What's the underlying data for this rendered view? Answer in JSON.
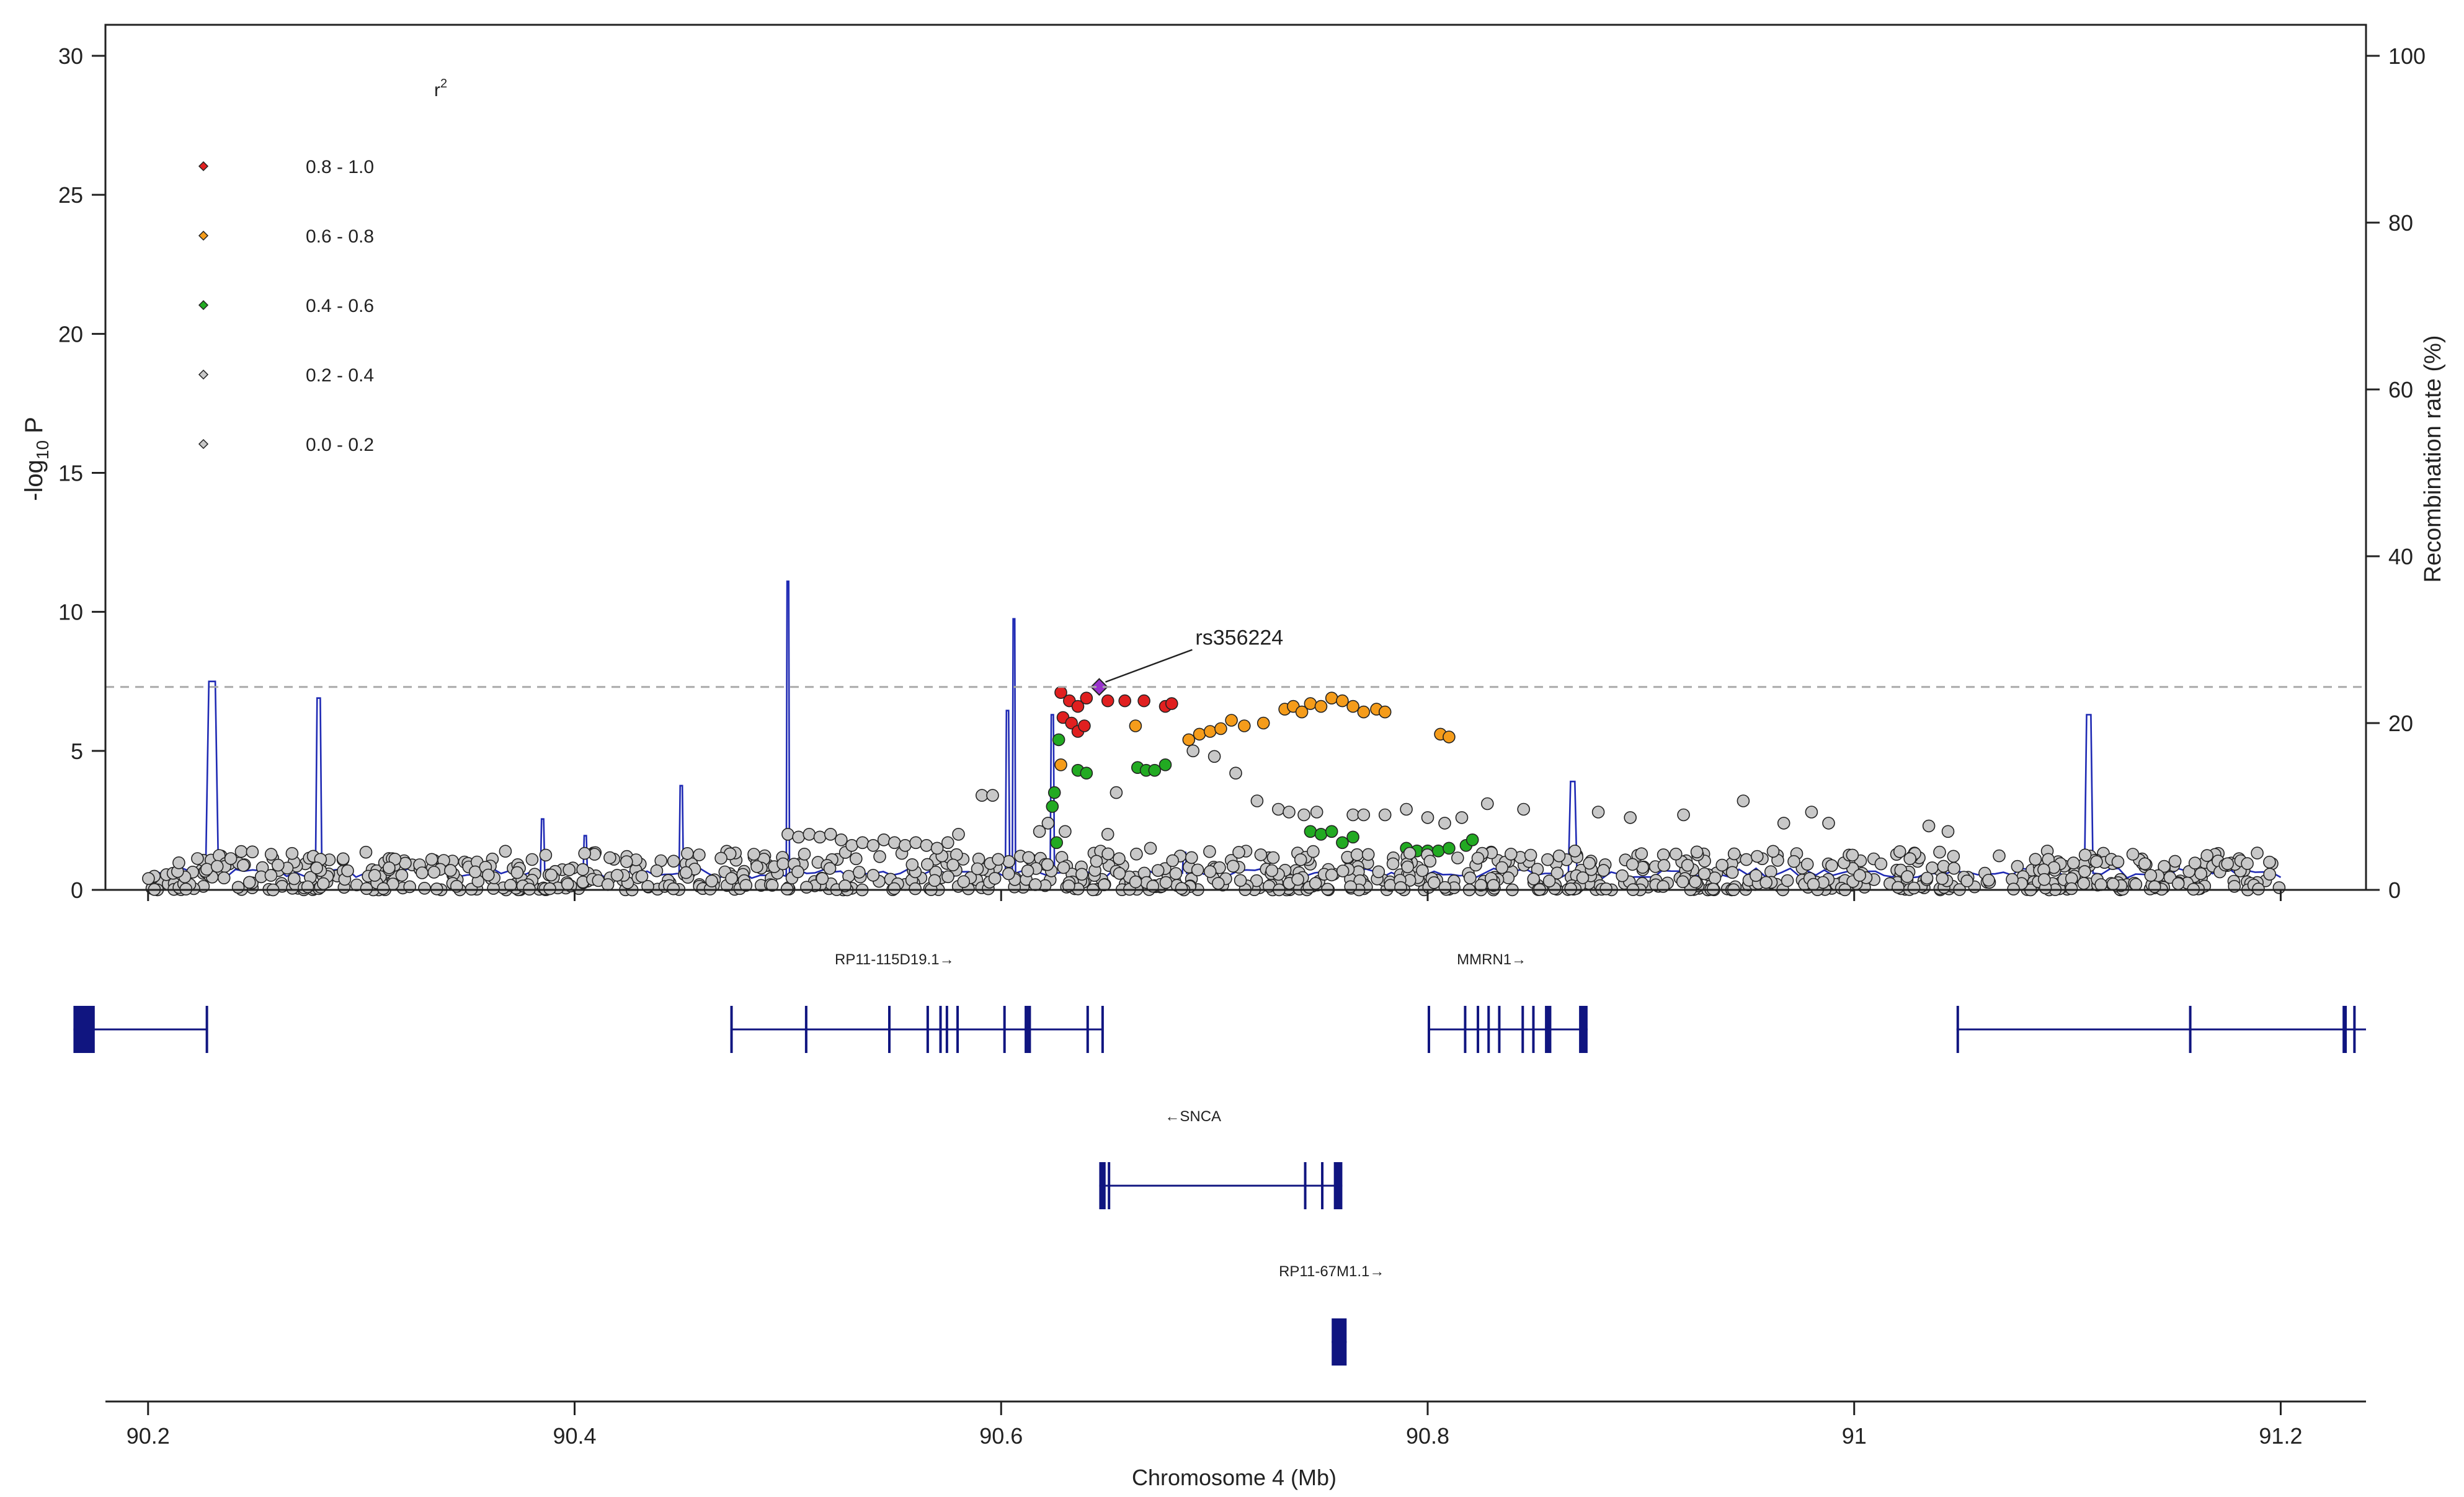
{
  "chart_data": {
    "type": "scatter",
    "title": "",
    "xlabel": "Chromosome 4 (Mb)",
    "ylabel_left": "-log10 P",
    "ylabel_right": "Recombination rate (%)",
    "xlim": [
      90.18,
      91.24
    ],
    "ylim_left": [
      0,
      30
    ],
    "ylim_right": [
      0,
      100
    ],
    "x_ticks": [
      "90.2",
      "90.4",
      "90.6",
      "90.8",
      "91",
      "91.2"
    ],
    "x_tick_values": [
      90.2,
      90.4,
      90.6,
      90.8,
      91.0,
      91.2
    ],
    "y_ticks_left": [
      "0",
      "5",
      "10",
      "15",
      "20",
      "25",
      "30"
    ],
    "y_ticks_right": [
      "0",
      "20",
      "40",
      "60",
      "80",
      "100"
    ],
    "significance_threshold": 7.3,
    "lead_snp": {
      "label": "rs356224",
      "x": 90.646,
      "y": 7.3,
      "color": "#9933cc"
    },
    "legend": {
      "title_base": "r",
      "title_sup": "2",
      "placement": "top-left",
      "items": [
        {
          "label": "0.8 - 1.0",
          "color": "#e02020"
        },
        {
          "label": "0.6 - 0.8",
          "color": "#f59c1a"
        },
        {
          "label": "0.4 - 0.6",
          "color": "#22aa22"
        },
        {
          "label": "0.2 - 0.4",
          "color": "#c8c8c8"
        },
        {
          "label": "0.0 - 0.2",
          "color": "#c8c8c8"
        }
      ]
    },
    "series": [
      {
        "name": "0.8 - 1.0",
        "color": "#e02020",
        "points": [
          [
            90.628,
            7.1
          ],
          [
            90.632,
            6.8
          ],
          [
            90.636,
            6.6
          ],
          [
            90.64,
            6.9
          ],
          [
            90.65,
            6.8
          ],
          [
            90.658,
            6.8
          ],
          [
            90.667,
            6.8
          ],
          [
            90.677,
            6.6
          ],
          [
            90.68,
            6.7
          ],
          [
            90.629,
            6.2
          ],
          [
            90.633,
            6.0
          ],
          [
            90.636,
            5.7
          ],
          [
            90.639,
            5.9
          ]
        ]
      },
      {
        "name": "0.6 - 0.8",
        "color": "#f59c1a",
        "points": [
          [
            90.628,
            4.5
          ],
          [
            90.663,
            5.9
          ],
          [
            90.688,
            5.4
          ],
          [
            90.693,
            5.6
          ],
          [
            90.698,
            5.7
          ],
          [
            90.703,
            5.8
          ],
          [
            90.708,
            6.1
          ],
          [
            90.714,
            5.9
          ],
          [
            90.723,
            6.0
          ],
          [
            90.733,
            6.5
          ],
          [
            90.737,
            6.6
          ],
          [
            90.741,
            6.4
          ],
          [
            90.745,
            6.7
          ],
          [
            90.75,
            6.6
          ],
          [
            90.755,
            6.9
          ],
          [
            90.76,
            6.8
          ],
          [
            90.765,
            6.6
          ],
          [
            90.77,
            6.4
          ],
          [
            90.776,
            6.5
          ],
          [
            90.78,
            6.4
          ],
          [
            90.806,
            5.6
          ],
          [
            90.81,
            5.5
          ]
        ]
      },
      {
        "name": "0.4 - 0.6",
        "color": "#22aa22",
        "points": [
          [
            90.624,
            3.0
          ],
          [
            90.626,
            1.7
          ],
          [
            90.627,
            5.4
          ],
          [
            90.625,
            3.5
          ],
          [
            90.636,
            4.3
          ],
          [
            90.64,
            4.2
          ],
          [
            90.664,
            4.4
          ],
          [
            90.668,
            4.3
          ],
          [
            90.672,
            4.3
          ],
          [
            90.677,
            4.5
          ],
          [
            90.745,
            2.1
          ],
          [
            90.75,
            2.0
          ],
          [
            90.755,
            2.1
          ],
          [
            90.76,
            1.7
          ],
          [
            90.765,
            1.9
          ],
          [
            90.79,
            1.5
          ],
          [
            90.795,
            1.4
          ],
          [
            90.8,
            1.4
          ],
          [
            90.805,
            1.4
          ],
          [
            90.81,
            1.5
          ],
          [
            90.818,
            1.6
          ],
          [
            90.821,
            1.8
          ]
        ]
      },
      {
        "name": "0.2 - 0.4",
        "color": "#c8c8c8",
        "points": [
          [
            90.591,
            3.4
          ],
          [
            90.596,
            3.4
          ],
          [
            90.63,
            2.1
          ],
          [
            90.65,
            2.0
          ],
          [
            90.654,
            3.5
          ],
          [
            90.67,
            1.5
          ],
          [
            90.69,
            5.0
          ],
          [
            90.7,
            4.8
          ],
          [
            90.71,
            4.2
          ],
          [
            90.72,
            3.2
          ],
          [
            90.73,
            2.9
          ],
          [
            90.735,
            2.8
          ],
          [
            90.742,
            2.7
          ],
          [
            90.748,
            2.8
          ],
          [
            90.765,
            2.7
          ],
          [
            90.77,
            2.7
          ],
          [
            90.78,
            2.7
          ],
          [
            90.79,
            2.9
          ],
          [
            90.8,
            2.6
          ],
          [
            90.808,
            2.4
          ],
          [
            90.816,
            2.6
          ],
          [
            90.828,
            3.1
          ],
          [
            90.845,
            2.9
          ],
          [
            90.88,
            2.8
          ],
          [
            90.895,
            2.6
          ],
          [
            90.92,
            2.7
          ],
          [
            90.948,
            3.2
          ],
          [
            90.967,
            2.4
          ],
          [
            90.98,
            2.8
          ],
          [
            90.988,
            2.4
          ],
          [
            91.035,
            2.3
          ],
          [
            91.044,
            2.1
          ]
        ]
      },
      {
        "name": "0.0 - 0.2",
        "color": "#c8c8c8",
        "cloud": {
          "x_start": 90.2,
          "x_end": 91.2,
          "count": 1000,
          "band_min": 0.0,
          "band_max": 1.4
        }
      },
      {
        "name": "0.0 - 0.2 (elevated)",
        "color": "#c8c8c8",
        "points": [
          [
            90.5,
            2.0
          ],
          [
            90.505,
            1.9
          ],
          [
            90.51,
            2.0
          ],
          [
            90.515,
            1.9
          ],
          [
            90.52,
            2.0
          ],
          [
            90.525,
            1.8
          ],
          [
            90.53,
            1.6
          ],
          [
            90.535,
            1.7
          ],
          [
            90.54,
            1.6
          ],
          [
            90.545,
            1.8
          ],
          [
            90.55,
            1.7
          ],
          [
            90.555,
            1.6
          ],
          [
            90.56,
            1.7
          ],
          [
            90.565,
            1.6
          ],
          [
            90.57,
            1.5
          ],
          [
            90.575,
            1.7
          ],
          [
            90.58,
            2.0
          ],
          [
            90.618,
            2.1
          ],
          [
            90.622,
            2.4
          ]
        ]
      }
    ],
    "recombination_rate": {
      "color": "#1f2ab4",
      "baseline": 2.0,
      "peaks": [
        {
          "x": 90.23,
          "value": 25,
          "width": 0.006
        },
        {
          "x": 90.28,
          "value": 23,
          "width": 0.003
        },
        {
          "x": 90.385,
          "value": 8.5,
          "width": 0.002
        },
        {
          "x": 90.405,
          "value": 6.5,
          "width": 0.002
        },
        {
          "x": 90.45,
          "value": 12.5,
          "width": 0.002
        },
        {
          "x": 90.5,
          "value": 37,
          "width": 0.0015
        },
        {
          "x": 90.603,
          "value": 21.5,
          "width": 0.002
        },
        {
          "x": 90.606,
          "value": 32.5,
          "width": 0.0015
        },
        {
          "x": 90.624,
          "value": 21,
          "width": 0.002
        },
        {
          "x": 90.686,
          "value": 4.5,
          "width": 0.002
        },
        {
          "x": 90.868,
          "value": 13,
          "width": 0.004
        },
        {
          "x": 91.11,
          "value": 21,
          "width": 0.004
        }
      ]
    },
    "genes": [
      {
        "name": "RP11-115D19.1→",
        "row": 0,
        "label_x": 90.55,
        "start": 90.473,
        "end": 90.648,
        "exons": [
          [
            90.473,
            90.474
          ],
          [
            90.508,
            90.509
          ],
          [
            90.547,
            90.548
          ],
          [
            90.565,
            90.566
          ],
          [
            90.571,
            90.572
          ],
          [
            90.574,
            90.575
          ],
          [
            90.579,
            90.58
          ],
          [
            90.601,
            90.602
          ],
          [
            90.611,
            90.614
          ],
          [
            90.64,
            90.641
          ],
          [
            90.647,
            90.648
          ]
        ]
      },
      {
        "name": "MMRN1→",
        "row": 0,
        "label_x": 90.83,
        "start": 90.8,
        "end": 90.875,
        "exons": [
          [
            90.8,
            90.801
          ],
          [
            90.817,
            90.818
          ],
          [
            90.823,
            90.824
          ],
          [
            90.828,
            90.829
          ],
          [
            90.833,
            90.834
          ],
          [
            90.844,
            90.845
          ],
          [
            90.849,
            90.85
          ],
          [
            90.855,
            90.858
          ],
          [
            90.871,
            90.875
          ]
        ]
      },
      {
        "name": "",
        "row": 0,
        "start": 90.165,
        "end": 90.228,
        "exons": [
          [
            90.165,
            90.175
          ],
          [
            90.227,
            90.228
          ]
        ]
      },
      {
        "name": "",
        "row": 0,
        "start": 91.048,
        "end": 91.24,
        "exons": [
          [
            91.048,
            91.049
          ],
          [
            91.157,
            91.158
          ],
          [
            91.229,
            91.231
          ],
          [
            91.234,
            91.235
          ]
        ]
      },
      {
        "name": "←SNCA",
        "row": 1,
        "label_x": 90.69,
        "start": 90.646,
        "end": 90.76,
        "exons": [
          [
            90.646,
            90.649
          ],
          [
            90.65,
            90.651
          ],
          [
            90.742,
            90.743
          ],
          [
            90.75,
            90.751
          ],
          [
            90.756,
            90.76
          ]
        ]
      },
      {
        "name": "RP11-67M1.1→",
        "row": 2,
        "label_x": 90.755,
        "start": 90.755,
        "end": 90.762,
        "exons": [
          [
            90.755,
            90.762
          ]
        ]
      }
    ]
  }
}
